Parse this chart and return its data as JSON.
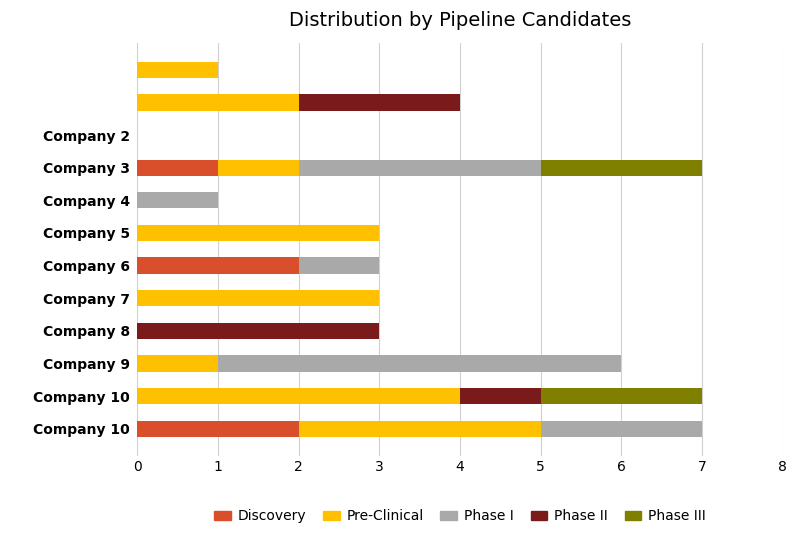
{
  "title": "Distribution by Pipeline Candidates",
  "y_labels": [
    " ",
    " ",
    "Company 2",
    "Company 3",
    "Company 4",
    "Company 5",
    "Company 6",
    "Company 7",
    "Company 8",
    "Company 9",
    "Company 10",
    "Company 10"
  ],
  "data": {
    "Discovery": [
      0,
      0,
      0,
      1,
      0,
      0,
      2,
      0,
      0,
      0,
      0,
      2
    ],
    "Pre-Clinical": [
      1,
      2,
      0,
      1,
      0,
      3,
      0,
      3,
      0,
      1,
      4,
      3
    ],
    "Phase I": [
      0,
      0,
      0,
      3,
      1,
      0,
      1,
      0,
      0,
      5,
      0,
      2
    ],
    "Phase II": [
      0,
      2,
      0,
      0,
      0,
      0,
      0,
      0,
      3,
      0,
      1,
      0
    ],
    "Phase III": [
      0,
      0,
      0,
      2,
      0,
      0,
      0,
      0,
      0,
      0,
      2,
      0
    ]
  },
  "colors": {
    "Discovery": "#D94F2B",
    "Pre-Clinical": "#FFC000",
    "Phase I": "#A9A9A9",
    "Phase II": "#7B1A1A",
    "Phase III": "#808000"
  },
  "xlim": [
    0,
    8
  ],
  "xticks": [
    0,
    1,
    2,
    3,
    4,
    5,
    6,
    7,
    8
  ],
  "legend_order": [
    "Discovery",
    "Pre-Clinical",
    "Phase I",
    "Phase II",
    "Phase III"
  ],
  "background_color": "#FFFFFF",
  "grid_color": "#D0D0D0",
  "bar_height": 0.5,
  "figsize": [
    8.07,
    5.36
  ],
  "dpi": 100
}
